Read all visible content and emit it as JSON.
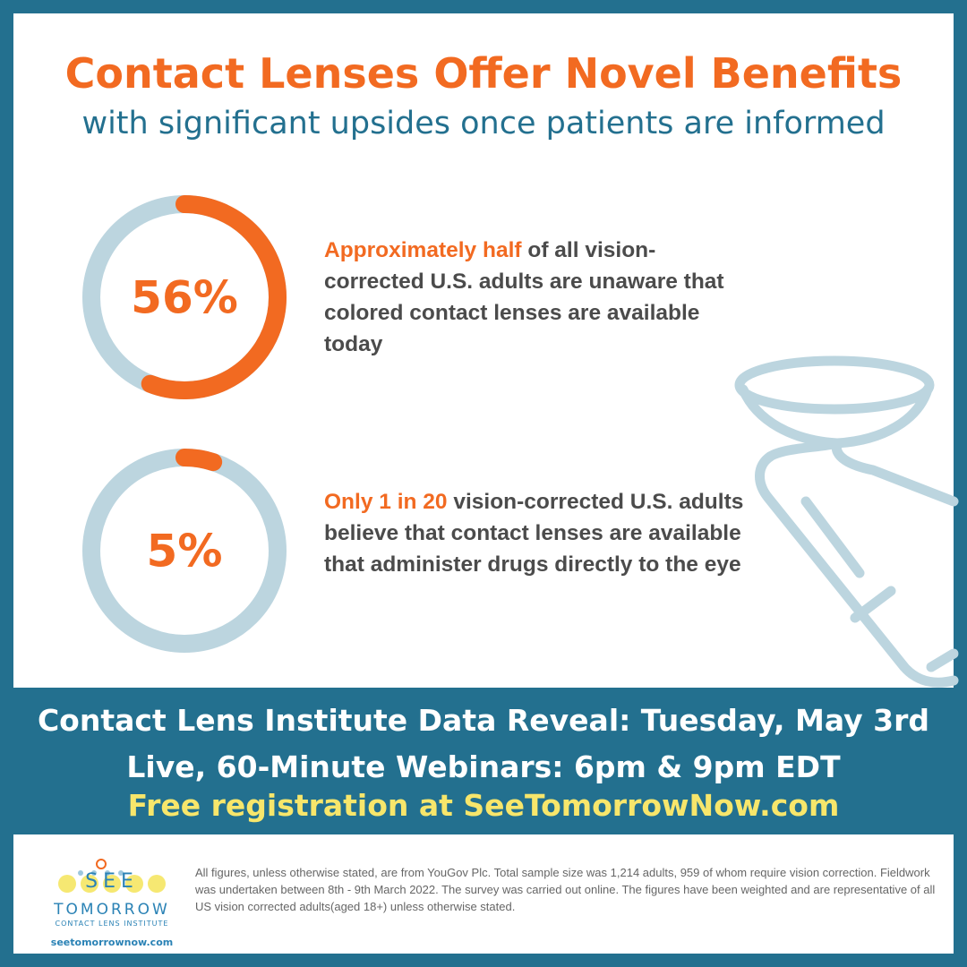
{
  "header": {
    "title": "Contact Lenses Offer Novel Benefits",
    "subtitle": "with significant upsides once patients are informed"
  },
  "stats": [
    {
      "value": 56,
      "value_label": "56%",
      "highlight": "Approximately half",
      "text": " of all vision-corrected U.S. adults are unaware that colored contact lenses are available today",
      "color": "#f26a21",
      "track_color": "#bcd5df"
    },
    {
      "value": 5,
      "value_label": "5%",
      "highlight": "Only 1 in 20",
      "text": " vision-corrected U.S. adults believe that contact lenses are available that administer drugs directly to the eye",
      "color": "#f26a21",
      "track_color": "#bcd5df"
    }
  ],
  "banner": {
    "lines": [
      "Contact Lens Institute Data Reveal: Tuesday, May 3rd",
      "Live, 60-Minute Webinars: 6pm & 9pm EDT",
      "Free registration at SeeTomorrowNow.com"
    ]
  },
  "footer": {
    "logo": {
      "word1": "SEE",
      "word2": "TOMORROW",
      "tagline": "CONTACT LENS INSTITUTE",
      "url": "seetomorrownow.com"
    },
    "note": "All figures, unless otherwise stated, are from YouGov Plc. Total sample size was 1,214 adults, 959 of whom require vision correction. Fieldwork was undertaken between 8th - 9th March 2022. The survey was carried out online. The figures have been weighted and are representative of all US vision corrected adults(aged 18+) unless otherwise stated."
  }
}
